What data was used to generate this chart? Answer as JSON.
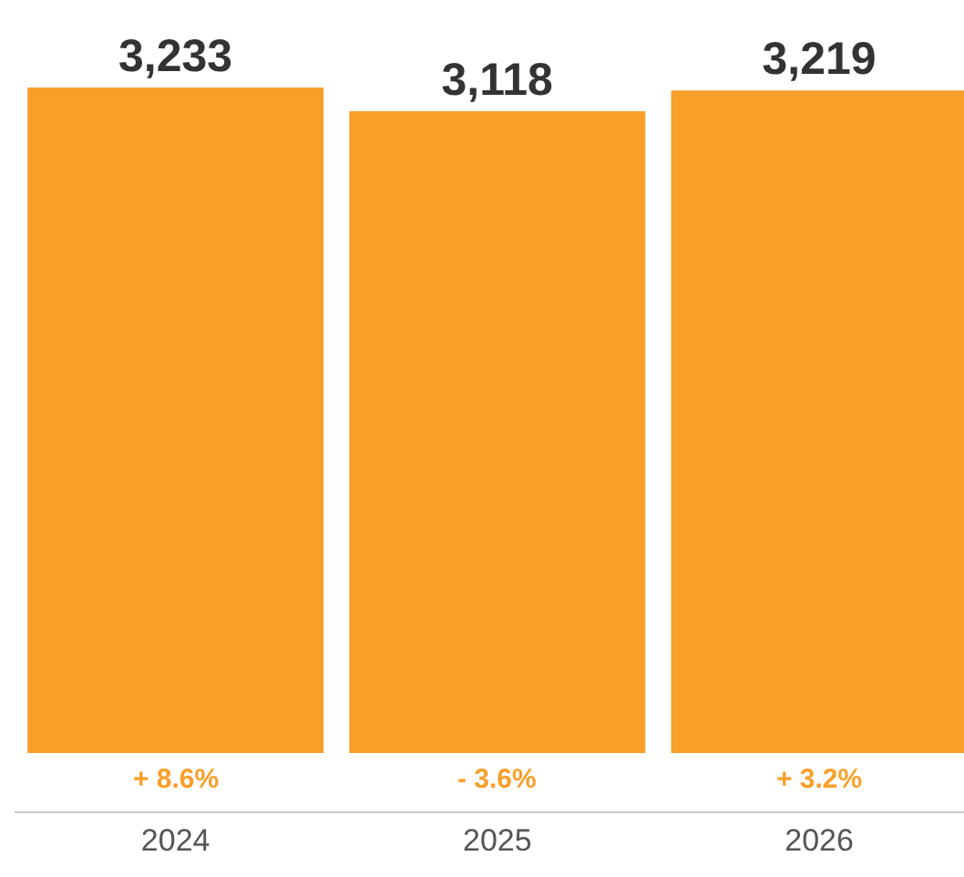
{
  "chart_data": {
    "type": "bar",
    "categories": [
      "2024",
      "2025",
      "2026"
    ],
    "values": [
      3233,
      3118,
      3219
    ],
    "value_labels": [
      "3,233",
      "3,118",
      "3,219"
    ],
    "color": "#f89f2a",
    "annotations": [
      "+ 8.6%",
      "- 3.6%",
      "+ 3.2%"
    ]
  }
}
